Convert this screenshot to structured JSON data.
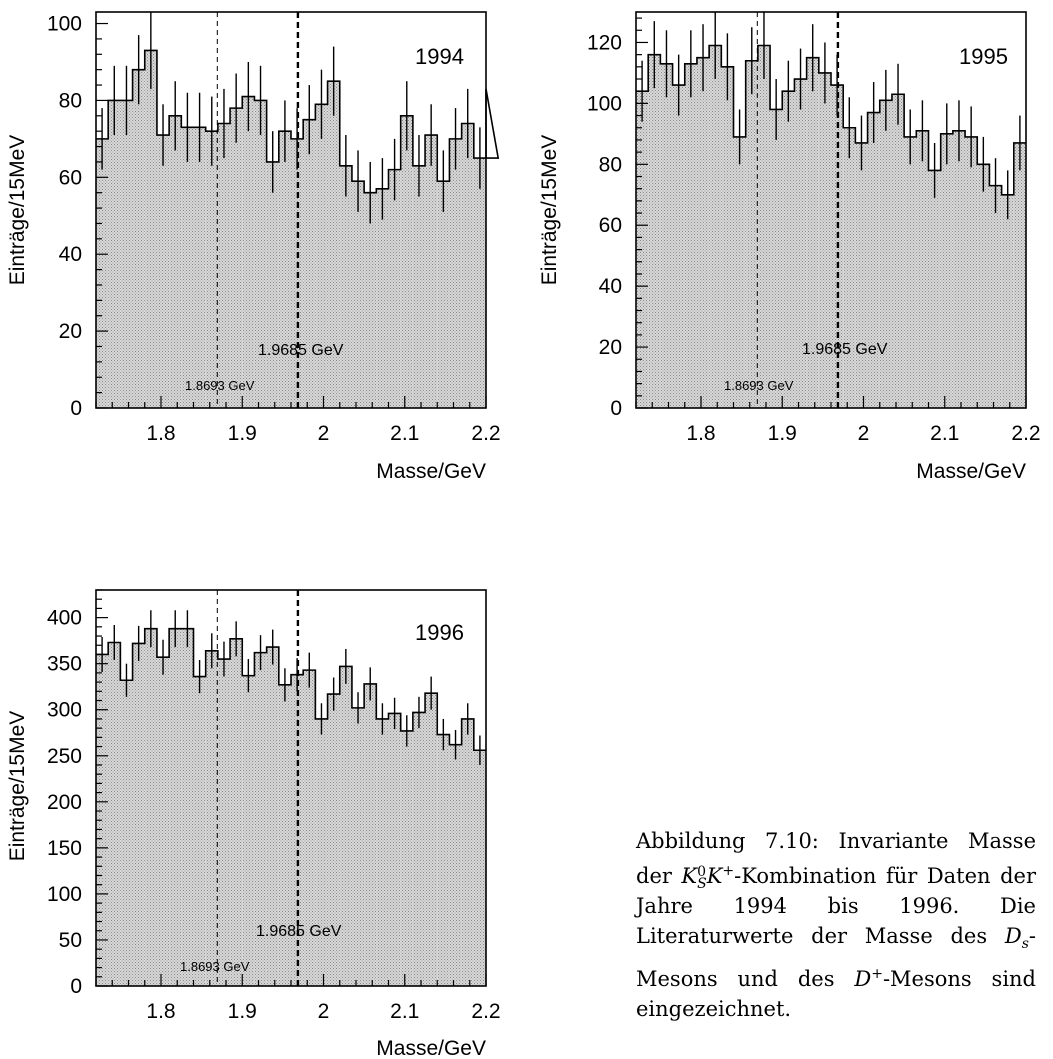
{
  "chart_data": [
    {
      "type": "bar",
      "annotation": "1994",
      "xlabel": "Masse/GeV",
      "ylabel": "Einträge/15MeV",
      "xlim": [
        1.72,
        2.2
      ],
      "ylim": [
        0,
        103
      ],
      "x_ticks": [
        "1.8",
        "1.9",
        "2",
        "2.1",
        "2.2"
      ],
      "y_ticks": [
        "0",
        "20",
        "40",
        "60",
        "80",
        "100"
      ],
      "bin_width": 0.015,
      "values": [
        70,
        80,
        80,
        88,
        93,
        71,
        76,
        73,
        73,
        72,
        74,
        78,
        81,
        80,
        64,
        72,
        70,
        75,
        79,
        85,
        63,
        59,
        56,
        57,
        62,
        76,
        63,
        71,
        59,
        70,
        74,
        65,
        83,
        65
      ],
      "errors": [
        8,
        9,
        9,
        9,
        10,
        8,
        9,
        9,
        9,
        9,
        9,
        9,
        9,
        9,
        8,
        8,
        8,
        9,
        9,
        9,
        8,
        8,
        8,
        8,
        8,
        9,
        8,
        8,
        8,
        8,
        9,
        8,
        9,
        8
      ],
      "reference_lines": [
        {
          "x": 1.8693,
          "label": "1.8693 GeV",
          "style": "dashed-thin"
        },
        {
          "x": 1.9685,
          "label": "1.9685 GeV",
          "style": "dashed-thick"
        }
      ]
    },
    {
      "type": "bar",
      "annotation": "1995",
      "xlabel": "Masse/GeV",
      "ylabel": "Einträge/15MeV",
      "xlim": [
        1.72,
        2.2
      ],
      "ylim": [
        0,
        130
      ],
      "x_ticks": [
        "1.8",
        "1.9",
        "2",
        "2.1",
        "2.2"
      ],
      "y_ticks": [
        "0",
        "20",
        "40",
        "60",
        "80",
        "100",
        "120"
      ],
      "bin_width": 0.015,
      "values": [
        104,
        116,
        113,
        106,
        113,
        115,
        119,
        112,
        89,
        114,
        119,
        98,
        104,
        108,
        115,
        110,
        106,
        92,
        87,
        97,
        101,
        103,
        89,
        91,
        78,
        90,
        91,
        89,
        80,
        73,
        70,
        87
      ],
      "errors": [
        10,
        11,
        11,
        10,
        11,
        11,
        11,
        11,
        9,
        11,
        11,
        10,
        10,
        10,
        11,
        10,
        10,
        10,
        9,
        10,
        10,
        10,
        9,
        10,
        9,
        10,
        10,
        10,
        9,
        9,
        8,
        9
      ],
      "reference_lines": [
        {
          "x": 1.8693,
          "label": "1.8693 GeV",
          "style": "dashed-thin"
        },
        {
          "x": 1.9685,
          "label": "1.9685 GeV",
          "style": "dashed-thick"
        }
      ]
    },
    {
      "type": "bar",
      "annotation": "1996",
      "xlabel": "Masse/GeV",
      "ylabel": "Einträge/15MeV",
      "xlim": [
        1.72,
        2.2
      ],
      "ylim": [
        0,
        430
      ],
      "x_ticks": [
        "1.8",
        "1.9",
        "2",
        "2.1",
        "2.2"
      ],
      "y_ticks": [
        "0",
        "50",
        "100",
        "150",
        "200",
        "250",
        "300",
        "350",
        "400"
      ],
      "bin_width": 0.015,
      "values": [
        360,
        373,
        332,
        372,
        388,
        357,
        388,
        388,
        336,
        364,
        355,
        377,
        337,
        362,
        368,
        327,
        338,
        343,
        290,
        317,
        347,
        302,
        328,
        290,
        296,
        277,
        297,
        318,
        273,
        262,
        290,
        256
      ],
      "errors": [
        19,
        19,
        18,
        19,
        20,
        19,
        20,
        20,
        18,
        19,
        19,
        19,
        18,
        19,
        19,
        18,
        18,
        19,
        17,
        18,
        19,
        17,
        18,
        17,
        17,
        17,
        17,
        18,
        17,
        16,
        17,
        16
      ],
      "reference_lines": [
        {
          "x": 1.8693,
          "label": "1.8693 GeV",
          "style": "dashed-thin"
        },
        {
          "x": 1.9685,
          "label": "1.9685 GeV",
          "style": "dashed-thick"
        }
      ]
    }
  ],
  "caption": {
    "parts": [
      "Abbildung 7.10: Invariante Masse der ",
      "K",
      "0",
      "S",
      "K",
      "+",
      "-Kombination für Daten der Jahre 1994 bis 1996. Die Literaturwerte der Masse des ",
      "D",
      "s",
      "-Mesons und des ",
      "D",
      "+",
      "-Mesons sind eingezeichnet."
    ]
  }
}
